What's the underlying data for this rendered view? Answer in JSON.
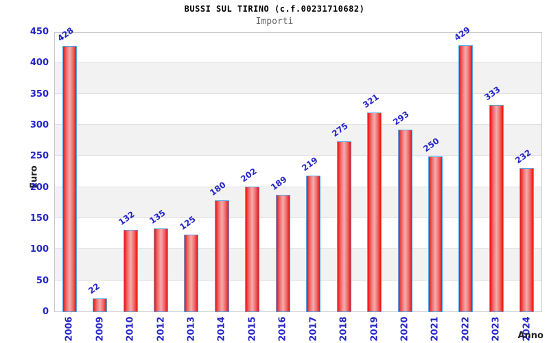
{
  "header": {
    "title": "BUSSI SUL TIRINO (c.f.00231710682)",
    "subtitle": "Importi"
  },
  "chart_data": {
    "type": "bar",
    "title": "BUSSI SUL TIRINO (c.f.00231710682)",
    "subtitle": "Importi",
    "xlabel": "Anno",
    "ylabel": "Euro",
    "categories": [
      "2006",
      "2009",
      "2010",
      "2012",
      "2013",
      "2014",
      "2015",
      "2016",
      "2017",
      "2018",
      "2019",
      "2020",
      "2021",
      "2022",
      "2023",
      "2024"
    ],
    "values": [
      428,
      22,
      132,
      135,
      125,
      180,
      202,
      189,
      219,
      275,
      321,
      293,
      250,
      429,
      333,
      232
    ],
    "ylim": [
      0,
      450
    ],
    "yticks": [
      0,
      50,
      100,
      150,
      200,
      250,
      300,
      350,
      400,
      450
    ],
    "grid": "horizontal-bands-alternating",
    "legend": "none",
    "colors": {
      "bar_edge": "#e81414",
      "bar_center": "#f6acac",
      "bar_border": "#55a5e5",
      "tick_label": "#2424c8",
      "value_label": "#2424c8",
      "band_gray": "#f2f2f2",
      "band_white": "#ffffff",
      "gridline": "#e0e0e0",
      "plot_border": "#c8c8c8",
      "title": "#000000",
      "subtitle": "#666666",
      "axis_title": "#222222"
    }
  }
}
